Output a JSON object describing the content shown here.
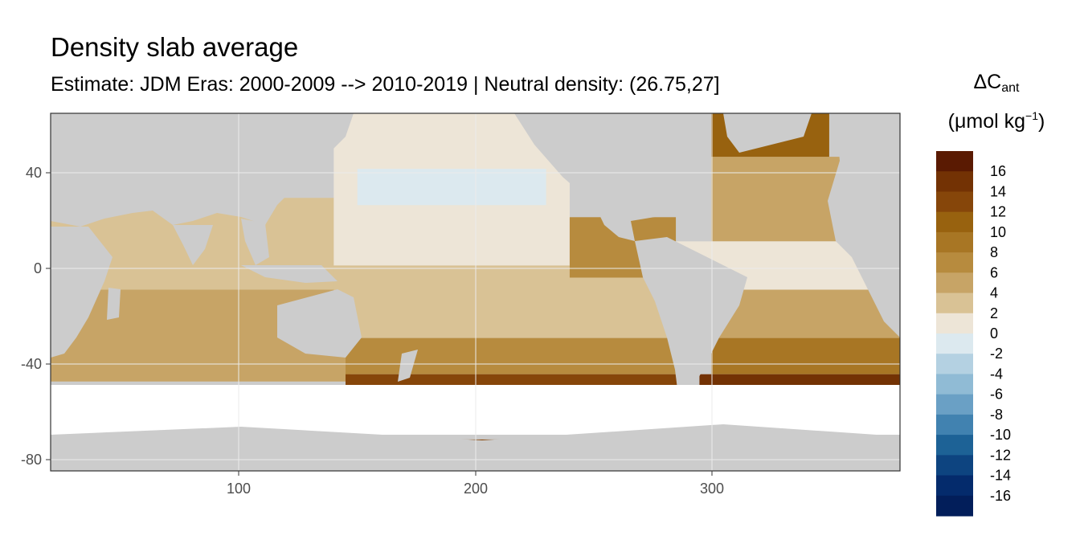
{
  "title": "Density slab average",
  "subtitle": "Estimate: JDM Eras: 2000-2009 --> 2010-2019 | Neutral density: (26.75,27]",
  "legend": {
    "symbol": "ΔC",
    "subscript": "ant",
    "unit_prefix": "(μmol kg",
    "unit_sup": "−1",
    "unit_suffix": ")",
    "labels": [
      "16",
      "14",
      "12",
      "10",
      "8",
      "6",
      "4",
      "2",
      "0",
      "-2",
      "-4",
      "-6",
      "-8",
      "-10",
      "-12",
      "-14",
      "-16"
    ],
    "colors": [
      "#5a1a02",
      "#733204",
      "#86460a",
      "#98620f",
      "#a87624",
      "#b78b3e",
      "#c7a466",
      "#d9c295",
      "#ede5d7",
      "#dce9ef",
      "#b4d1e2",
      "#90bbd5",
      "#6aa0c5",
      "#4182b0",
      "#1d6296",
      "#0d4480",
      "#042b6c",
      "#021e5a"
    ]
  },
  "chart_data": {
    "type": "heatmap",
    "title": "Density slab average",
    "subtitle": "Estimate: JDM Eras: 2000-2009 --> 2010-2019 | Neutral density: (26.75,27]",
    "xlim": [
      20,
      380
    ],
    "ylim": [
      -85,
      63
    ],
    "x_ticks": [
      100,
      200,
      300
    ],
    "y_ticks": [
      40,
      0,
      -40,
      -80
    ],
    "colorbar_breaks": [
      -16,
      -14,
      -12,
      -10,
      -8,
      -6,
      -4,
      -2,
      0,
      2,
      4,
      6,
      8,
      10,
      12,
      14,
      16
    ],
    "land_color": "#cccccc",
    "nodata_color": "#ffffff",
    "grid": true,
    "legend_position": "right",
    "regions": [
      {
        "lon": [
          20,
          147
        ],
        "lat": [
          -48,
          -10
        ],
        "value": 5.5
      },
      {
        "lon": [
          20,
          147
        ],
        "lat": [
          -10,
          28
        ],
        "value": 3.5
      },
      {
        "lon": [
          140,
          240
        ],
        "lat": [
          0,
          63
        ],
        "value": 1
      },
      {
        "lon": [
          150,
          230
        ],
        "lat": [
          25,
          40
        ],
        "value": -0.5
      },
      {
        "lon": [
          140,
          290
        ],
        "lat": [
          -30,
          0
        ],
        "value": 2.5
      },
      {
        "lon": [
          240,
          285
        ],
        "lat": [
          -5,
          20
        ],
        "value": 7
      },
      {
        "lon": [
          145,
          290
        ],
        "lat": [
          -45,
          -30
        ],
        "value": 7.5
      },
      {
        "lon": [
          145,
          290
        ],
        "lat": [
          -57,
          -45
        ],
        "value": 14
      },
      {
        "lon": [
          300,
          380
        ],
        "lat": [
          10,
          45
        ],
        "value": 5
      },
      {
        "lon": [
          300,
          350
        ],
        "lat": [
          45,
          63
        ],
        "value": 11
      },
      {
        "lon": [
          280,
          380
        ],
        "lat": [
          -10,
          10
        ],
        "value": 2
      },
      {
        "lon": [
          300,
          380
        ],
        "lat": [
          -30,
          -10
        ],
        "value": 5
      },
      {
        "lon": [
          300,
          380
        ],
        "lat": [
          -45,
          -30
        ],
        "value": 9
      },
      {
        "lon": [
          295,
          380
        ],
        "lat": [
          -50,
          -45
        ],
        "value": 15
      },
      {
        "lon": [
          170,
          300
        ],
        "lat": [
          -77,
          -72
        ],
        "value": 13
      }
    ]
  }
}
